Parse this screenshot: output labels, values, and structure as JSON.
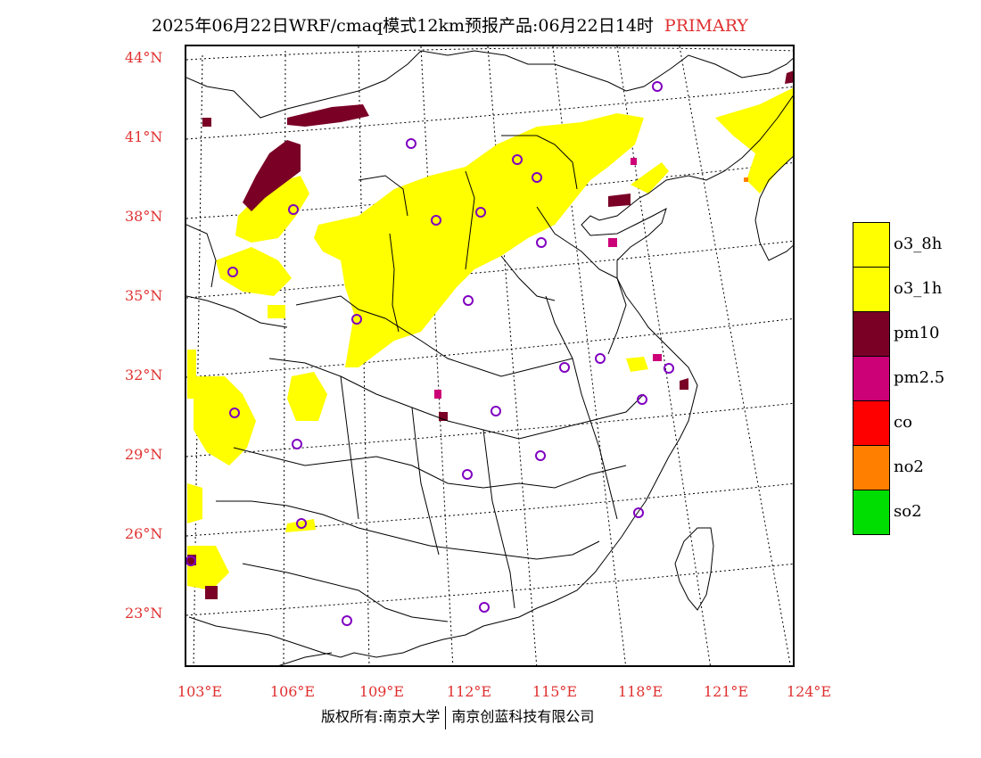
{
  "header": {
    "title": "2025年06月22日WRF/cmaq模式12km预报产品:06月22日14时",
    "tag": "PRIMARY"
  },
  "axes": {
    "lat_labels": [
      "44°N",
      "41°N",
      "38°N",
      "35°N",
      "32°N",
      "29°N",
      "26°N",
      "23°N"
    ],
    "lon_labels": [
      "103°E",
      "106°E",
      "109°E",
      "112°E",
      "115°E",
      "118°E",
      "121°E",
      "124°E"
    ]
  },
  "legend": {
    "items": [
      {
        "label": "o3_8h",
        "color": "#ffff00"
      },
      {
        "label": "o3_1h",
        "color": "#ffff00"
      },
      {
        "label": "pm10",
        "color": "#7a0026"
      },
      {
        "label": "pm2.5",
        "color": "#cc0077"
      },
      {
        "label": "co",
        "color": "#ff0000"
      },
      {
        "label": "no2",
        "color": "#ff8000"
      },
      {
        "label": "so2",
        "color": "#00dd00"
      }
    ]
  },
  "footer": {
    "left": "版权所有:南京大学",
    "right": "南京创蓝科技有限公司"
  },
  "colors": {
    "title_tag": "#e03030",
    "axis_label": "#e03030",
    "station_marker": "#8000c0"
  }
}
